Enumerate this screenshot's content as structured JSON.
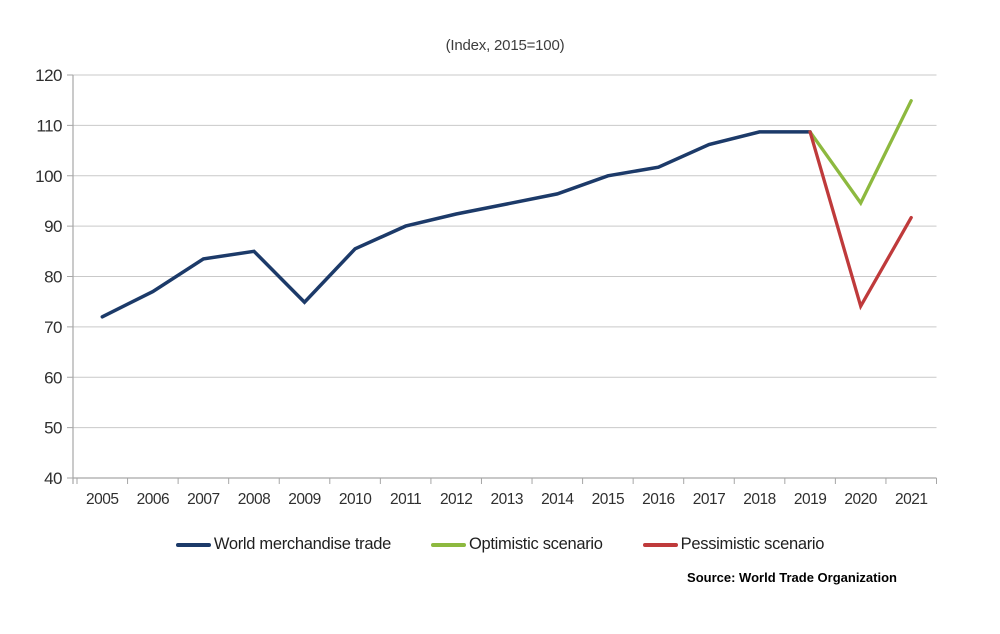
{
  "chart_data": {
    "type": "line",
    "title": "(Index, 2015=100)",
    "categories": [
      "2005",
      "2006",
      "2007",
      "2008",
      "2009",
      "2010",
      "2011",
      "2012",
      "2013",
      "2014",
      "2015",
      "2016",
      "2017",
      "2018",
      "2019",
      "2020",
      "2021"
    ],
    "xlabel": "",
    "ylabel": "",
    "ylim": [
      40,
      120
    ],
    "yticks": [
      40,
      50,
      60,
      70,
      80,
      90,
      100,
      110,
      120
    ],
    "grid": "horizontal",
    "legend_position": "bottom",
    "series": [
      {
        "name": "World merchandise trade",
        "color": "#1C3A69",
        "values": [
          72,
          77,
          83.5,
          85,
          74.9,
          85.5,
          90,
          92.4,
          94.4,
          96.4,
          100,
          101.7,
          106.2,
          108.7,
          108.7,
          null,
          null
        ]
      },
      {
        "name": "Optimistic scenario",
        "color": "#8DB93F",
        "values": [
          null,
          null,
          null,
          null,
          null,
          null,
          null,
          null,
          null,
          null,
          null,
          null,
          null,
          null,
          108.7,
          94.6,
          114.9
        ]
      },
      {
        "name": "Pessimistic scenario",
        "color": "#BF3A3B",
        "values": [
          null,
          null,
          null,
          null,
          null,
          null,
          null,
          null,
          null,
          null,
          null,
          null,
          null,
          null,
          108.7,
          74.1,
          91.7
        ]
      }
    ],
    "source": "Source: World Trade Organization",
    "colors": {
      "grid": "#C9C9C9",
      "axis": "#A6A6A6",
      "tick_text": "#2F2F2F",
      "legend_text": "#1F1F1F"
    }
  }
}
